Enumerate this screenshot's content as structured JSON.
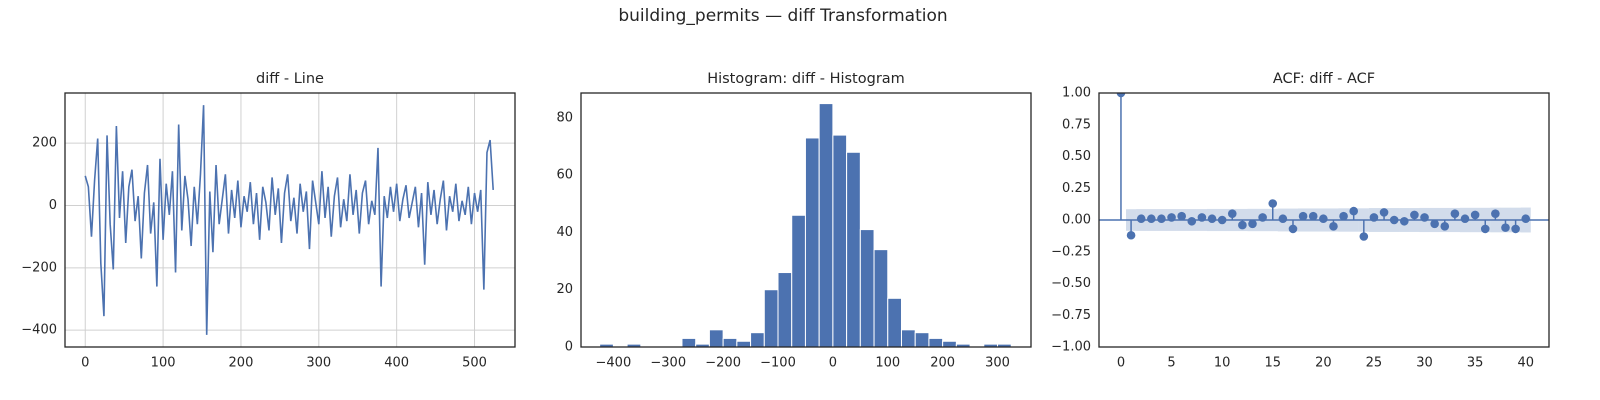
{
  "title": "building_permits — diff Transformation",
  "chart_data": [
    {
      "type": "line",
      "title": "diff - Line",
      "color": "#4c72b0",
      "grid": true,
      "x": [
        0,
        4,
        8,
        12,
        16,
        20,
        24,
        28,
        32,
        36,
        40,
        44,
        48,
        52,
        56,
        60,
        64,
        68,
        72,
        76,
        80,
        84,
        88,
        92,
        96,
        100,
        104,
        108,
        112,
        116,
        120,
        124,
        128,
        132,
        136,
        140,
        144,
        148,
        152,
        156,
        160,
        164,
        168,
        172,
        176,
        180,
        184,
        188,
        192,
        196,
        200,
        204,
        208,
        212,
        216,
        220,
        224,
        228,
        232,
        236,
        240,
        244,
        248,
        252,
        256,
        260,
        264,
        268,
        272,
        276,
        280,
        284,
        288,
        292,
        296,
        300,
        304,
        308,
        312,
        316,
        320,
        324,
        328,
        332,
        336,
        340,
        344,
        348,
        352,
        356,
        360,
        364,
        368,
        372,
        376,
        380,
        384,
        388,
        392,
        396,
        400,
        404,
        408,
        412,
        416,
        420,
        424,
        428,
        432,
        436,
        440,
        444,
        448,
        452,
        456,
        460,
        464,
        468,
        472,
        476,
        480,
        484,
        488,
        492,
        496,
        500,
        504,
        508,
        512,
        516,
        520,
        524
      ],
      "values": [
        95,
        60,
        -100,
        80,
        215,
        -185,
        -355,
        225,
        -60,
        -205,
        255,
        -40,
        110,
        -120,
        60,
        115,
        -50,
        30,
        -170,
        40,
        130,
        -90,
        10,
        -260,
        150,
        -110,
        70,
        -30,
        110,
        -215,
        260,
        -80,
        95,
        20,
        -130,
        60,
        -60,
        100,
        322,
        -415,
        45,
        -150,
        130,
        -60,
        20,
        100,
        -90,
        50,
        -40,
        80,
        -70,
        30,
        -20,
        75,
        -60,
        40,
        -110,
        60,
        10,
        -80,
        90,
        -30,
        55,
        -120,
        40,
        100,
        -50,
        25,
        -90,
        70,
        -20,
        45,
        -140,
        80,
        10,
        -60,
        110,
        -40,
        60,
        -100,
        30,
        90,
        -70,
        20,
        -50,
        100,
        -30,
        50,
        -90,
        40,
        80,
        -60,
        15,
        -30,
        185,
        -260,
        30,
        -40,
        60,
        -20,
        70,
        -50,
        20,
        65,
        -40,
        10,
        60,
        -70,
        40,
        -190,
        75,
        -30,
        50,
        -60,
        20,
        80,
        -80,
        30,
        -20,
        70,
        -50,
        15,
        -30,
        60,
        -60,
        40,
        -20,
        50,
        -270,
        170,
        210,
        50
      ],
      "xlim": [
        -26,
        552
      ],
      "ylim": [
        -454,
        361
      ],
      "xticks": [
        0,
        100,
        200,
        300,
        400,
        500
      ],
      "yticks": [
        {
          "value": -400,
          "label": "−400"
        },
        {
          "value": -200,
          "label": "−200"
        },
        0,
        200
      ]
    },
    {
      "type": "histogram",
      "title": "Histogram: diff - Histogram",
      "color": "#4c72b0",
      "grid": false,
      "bins": [
        -425,
        -400,
        -375,
        -350,
        -325,
        -300,
        -275,
        -250,
        -225,
        -200,
        -175,
        -150,
        -125,
        -100,
        -75,
        -50,
        -25,
        0,
        25,
        50,
        75,
        100,
        125,
        150,
        175,
        200,
        225,
        250,
        275,
        300,
        325
      ],
      "values": [
        1,
        0,
        1,
        0,
        0,
        0,
        3,
        1,
        6,
        3,
        2,
        5,
        20,
        26,
        46,
        73,
        85,
        74,
        68,
        41,
        34,
        17,
        6,
        5,
        3,
        2,
        1,
        0,
        1,
        1
      ],
      "xlim": [
        -459,
        361
      ],
      "ylim": [
        0,
        88.7
      ],
      "xticks": [
        {
          "value": -400,
          "label": "−400"
        },
        {
          "value": -300,
          "label": "−300"
        },
        {
          "value": -200,
          "label": "−200"
        },
        {
          "value": -100,
          "label": "−100"
        },
        0,
        100,
        200,
        300
      ],
      "yticks": [
        0,
        20,
        40,
        60,
        80
      ]
    },
    {
      "type": "acf",
      "title": "ACF: diff - ACF",
      "color": "#4c72b0",
      "band_color": "#4c72b0",
      "grid": false,
      "x": [
        0,
        1,
        2,
        3,
        4,
        5,
        6,
        7,
        8,
        9,
        10,
        11,
        12,
        13,
        14,
        15,
        16,
        17,
        18,
        19,
        20,
        21,
        22,
        23,
        24,
        25,
        26,
        27,
        28,
        29,
        30,
        31,
        32,
        33,
        34,
        35,
        36,
        37,
        38,
        39,
        40
      ],
      "values": [
        1,
        -0.12,
        0.01,
        0.01,
        0.01,
        0.02,
        0.03,
        -0.01,
        0.02,
        0.01,
        0,
        0.05,
        -0.04,
        -0.03,
        0.02,
        0.13,
        0.01,
        -0.07,
        0.03,
        0.03,
        0.01,
        -0.05,
        0.03,
        0.07,
        -0.13,
        0.02,
        0.06,
        0,
        -0.01,
        0.04,
        0.02,
        -0.03,
        -0.05,
        0.05,
        0.01,
        0.04,
        -0.07,
        0.05,
        -0.06,
        -0.07,
        0.01
      ],
      "band": [
        null,
        0.085,
        0.086,
        0.086,
        0.086,
        0.086,
        0.086,
        0.086,
        0.086,
        0.087,
        0.087,
        0.087,
        0.087,
        0.088,
        0.088,
        0.088,
        0.09,
        0.09,
        0.091,
        0.091,
        0.091,
        0.091,
        0.092,
        0.092,
        0.092,
        0.094,
        0.094,
        0.094,
        0.094,
        0.094,
        0.095,
        0.095,
        0.095,
        0.095,
        0.096,
        0.096,
        0.096,
        0.097,
        0.097,
        0.097,
        0.098
      ],
      "xlim": [
        -2.17,
        42.3
      ],
      "ylim": [
        -1,
        1
      ],
      "xticks": [
        0,
        5,
        10,
        15,
        20,
        25,
        30,
        35,
        40
      ],
      "yticks": [
        {
          "value": -1,
          "label": "−1.00"
        },
        {
          "value": -0.75,
          "label": "−0.75"
        },
        {
          "value": -0.5,
          "label": "−0.50"
        },
        {
          "value": -0.25,
          "label": "−0.25"
        },
        {
          "value": 0,
          "label": "0.00"
        },
        {
          "value": 0.25,
          "label": "0.25"
        },
        {
          "value": 0.5,
          "label": "0.50"
        },
        {
          "value": 0.75,
          "label": "0.75"
        },
        {
          "value": 1,
          "label": "1.00"
        }
      ]
    }
  ]
}
